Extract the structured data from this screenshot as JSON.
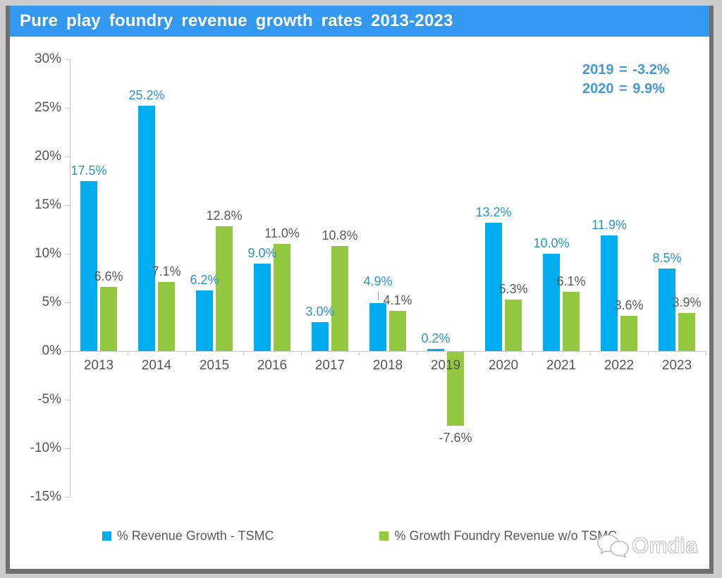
{
  "header": {
    "title": "Pure play foundry revenue growth rates 2013-2023"
  },
  "chart_data": {
    "type": "bar",
    "title": "Pure play foundry revenue growth rates 2013-2023",
    "categories": [
      "2013",
      "2014",
      "2015",
      "2016",
      "2017",
      "2018",
      "2019",
      "2020",
      "2021",
      "2022",
      "2023"
    ],
    "series": [
      {
        "name": "%  Revenue Growth - TSMC",
        "color": "#00AEEF",
        "label_color": "#2A94C6",
        "values": [
          17.5,
          25.2,
          6.2,
          9.0,
          3.0,
          4.9,
          0.2,
          13.2,
          10.0,
          11.9,
          8.5
        ]
      },
      {
        "name": "% Growth  Foundry Revenue w/o TSMC",
        "color": "#94C841",
        "label_color": "#595959",
        "values": [
          6.6,
          7.1,
          12.8,
          11.0,
          10.8,
          4.1,
          -7.6,
          5.3,
          6.1,
          3.6,
          3.9
        ]
      }
    ],
    "y_ticks": [
      "30%",
      "25%",
      "20%",
      "15%",
      "10%",
      "5%",
      "0%",
      "-5%",
      "-10%",
      "-15%"
    ],
    "ylim": [
      -15,
      30
    ],
    "grid": false,
    "legend_position": "bottom",
    "data_label_format": "0.0%",
    "leader_line_category": "2018",
    "annotations": [
      "2019 = -3.2%",
      "2020 = 9.9%"
    ]
  },
  "watermark": {
    "label": "Omdia",
    "icon": "chat-bubbles-icon"
  },
  "colors": {
    "header_bg": "#3398F0",
    "tsmc_blue": "#00AEEF",
    "foundry_green": "#94C841",
    "annotation_blue": "#4498D4",
    "axis_gray": "#C6C6C6",
    "text_gray": "#595959"
  }
}
